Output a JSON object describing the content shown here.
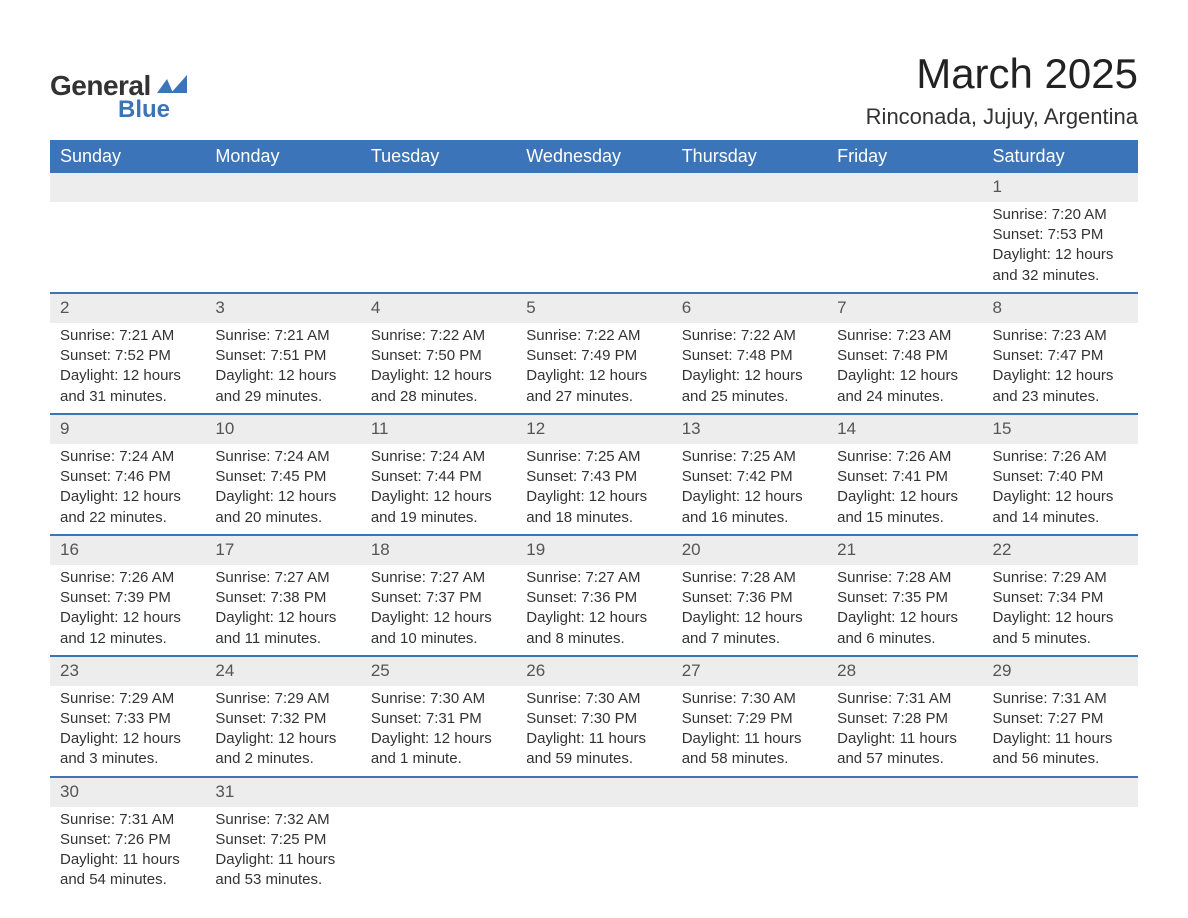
{
  "brand": {
    "line1": "General",
    "line2": "Blue",
    "logo_color": "#3b74b8"
  },
  "title": "March 2025",
  "location": "Rinconada, Jujuy, Argentina",
  "colors": {
    "header_bg": "#3b74b8",
    "header_text": "#ffffff",
    "daynum_bg": "#ededed",
    "row_divider": "#3b74b8",
    "body_text": "#333333"
  },
  "weekdays": [
    "Sunday",
    "Monday",
    "Tuesday",
    "Wednesday",
    "Thursday",
    "Friday",
    "Saturday"
  ],
  "weeks": [
    [
      null,
      null,
      null,
      null,
      null,
      null,
      {
        "n": "1",
        "sr": "Sunrise: 7:20 AM",
        "ss": "Sunset: 7:53 PM",
        "d1": "Daylight: 12 hours",
        "d2": "and 32 minutes."
      }
    ],
    [
      {
        "n": "2",
        "sr": "Sunrise: 7:21 AM",
        "ss": "Sunset: 7:52 PM",
        "d1": "Daylight: 12 hours",
        "d2": "and 31 minutes."
      },
      {
        "n": "3",
        "sr": "Sunrise: 7:21 AM",
        "ss": "Sunset: 7:51 PM",
        "d1": "Daylight: 12 hours",
        "d2": "and 29 minutes."
      },
      {
        "n": "4",
        "sr": "Sunrise: 7:22 AM",
        "ss": "Sunset: 7:50 PM",
        "d1": "Daylight: 12 hours",
        "d2": "and 28 minutes."
      },
      {
        "n": "5",
        "sr": "Sunrise: 7:22 AM",
        "ss": "Sunset: 7:49 PM",
        "d1": "Daylight: 12 hours",
        "d2": "and 27 minutes."
      },
      {
        "n": "6",
        "sr": "Sunrise: 7:22 AM",
        "ss": "Sunset: 7:48 PM",
        "d1": "Daylight: 12 hours",
        "d2": "and 25 minutes."
      },
      {
        "n": "7",
        "sr": "Sunrise: 7:23 AM",
        "ss": "Sunset: 7:48 PM",
        "d1": "Daylight: 12 hours",
        "d2": "and 24 minutes."
      },
      {
        "n": "8",
        "sr": "Sunrise: 7:23 AM",
        "ss": "Sunset: 7:47 PM",
        "d1": "Daylight: 12 hours",
        "d2": "and 23 minutes."
      }
    ],
    [
      {
        "n": "9",
        "sr": "Sunrise: 7:24 AM",
        "ss": "Sunset: 7:46 PM",
        "d1": "Daylight: 12 hours",
        "d2": "and 22 minutes."
      },
      {
        "n": "10",
        "sr": "Sunrise: 7:24 AM",
        "ss": "Sunset: 7:45 PM",
        "d1": "Daylight: 12 hours",
        "d2": "and 20 minutes."
      },
      {
        "n": "11",
        "sr": "Sunrise: 7:24 AM",
        "ss": "Sunset: 7:44 PM",
        "d1": "Daylight: 12 hours",
        "d2": "and 19 minutes."
      },
      {
        "n": "12",
        "sr": "Sunrise: 7:25 AM",
        "ss": "Sunset: 7:43 PM",
        "d1": "Daylight: 12 hours",
        "d2": "and 18 minutes."
      },
      {
        "n": "13",
        "sr": "Sunrise: 7:25 AM",
        "ss": "Sunset: 7:42 PM",
        "d1": "Daylight: 12 hours",
        "d2": "and 16 minutes."
      },
      {
        "n": "14",
        "sr": "Sunrise: 7:26 AM",
        "ss": "Sunset: 7:41 PM",
        "d1": "Daylight: 12 hours",
        "d2": "and 15 minutes."
      },
      {
        "n": "15",
        "sr": "Sunrise: 7:26 AM",
        "ss": "Sunset: 7:40 PM",
        "d1": "Daylight: 12 hours",
        "d2": "and 14 minutes."
      }
    ],
    [
      {
        "n": "16",
        "sr": "Sunrise: 7:26 AM",
        "ss": "Sunset: 7:39 PM",
        "d1": "Daylight: 12 hours",
        "d2": "and 12 minutes."
      },
      {
        "n": "17",
        "sr": "Sunrise: 7:27 AM",
        "ss": "Sunset: 7:38 PM",
        "d1": "Daylight: 12 hours",
        "d2": "and 11 minutes."
      },
      {
        "n": "18",
        "sr": "Sunrise: 7:27 AM",
        "ss": "Sunset: 7:37 PM",
        "d1": "Daylight: 12 hours",
        "d2": "and 10 minutes."
      },
      {
        "n": "19",
        "sr": "Sunrise: 7:27 AM",
        "ss": "Sunset: 7:36 PM",
        "d1": "Daylight: 12 hours",
        "d2": "and 8 minutes."
      },
      {
        "n": "20",
        "sr": "Sunrise: 7:28 AM",
        "ss": "Sunset: 7:36 PM",
        "d1": "Daylight: 12 hours",
        "d2": "and 7 minutes."
      },
      {
        "n": "21",
        "sr": "Sunrise: 7:28 AM",
        "ss": "Sunset: 7:35 PM",
        "d1": "Daylight: 12 hours",
        "d2": "and 6 minutes."
      },
      {
        "n": "22",
        "sr": "Sunrise: 7:29 AM",
        "ss": "Sunset: 7:34 PM",
        "d1": "Daylight: 12 hours",
        "d2": "and 5 minutes."
      }
    ],
    [
      {
        "n": "23",
        "sr": "Sunrise: 7:29 AM",
        "ss": "Sunset: 7:33 PM",
        "d1": "Daylight: 12 hours",
        "d2": "and 3 minutes."
      },
      {
        "n": "24",
        "sr": "Sunrise: 7:29 AM",
        "ss": "Sunset: 7:32 PM",
        "d1": "Daylight: 12 hours",
        "d2": "and 2 minutes."
      },
      {
        "n": "25",
        "sr": "Sunrise: 7:30 AM",
        "ss": "Sunset: 7:31 PM",
        "d1": "Daylight: 12 hours",
        "d2": "and 1 minute."
      },
      {
        "n": "26",
        "sr": "Sunrise: 7:30 AM",
        "ss": "Sunset: 7:30 PM",
        "d1": "Daylight: 11 hours",
        "d2": "and 59 minutes."
      },
      {
        "n": "27",
        "sr": "Sunrise: 7:30 AM",
        "ss": "Sunset: 7:29 PM",
        "d1": "Daylight: 11 hours",
        "d2": "and 58 minutes."
      },
      {
        "n": "28",
        "sr": "Sunrise: 7:31 AM",
        "ss": "Sunset: 7:28 PM",
        "d1": "Daylight: 11 hours",
        "d2": "and 57 minutes."
      },
      {
        "n": "29",
        "sr": "Sunrise: 7:31 AM",
        "ss": "Sunset: 7:27 PM",
        "d1": "Daylight: 11 hours",
        "d2": "and 56 minutes."
      }
    ],
    [
      {
        "n": "30",
        "sr": "Sunrise: 7:31 AM",
        "ss": "Sunset: 7:26 PM",
        "d1": "Daylight: 11 hours",
        "d2": "and 54 minutes."
      },
      {
        "n": "31",
        "sr": "Sunrise: 7:32 AM",
        "ss": "Sunset: 7:25 PM",
        "d1": "Daylight: 11 hours",
        "d2": "and 53 minutes."
      },
      null,
      null,
      null,
      null,
      null
    ]
  ]
}
